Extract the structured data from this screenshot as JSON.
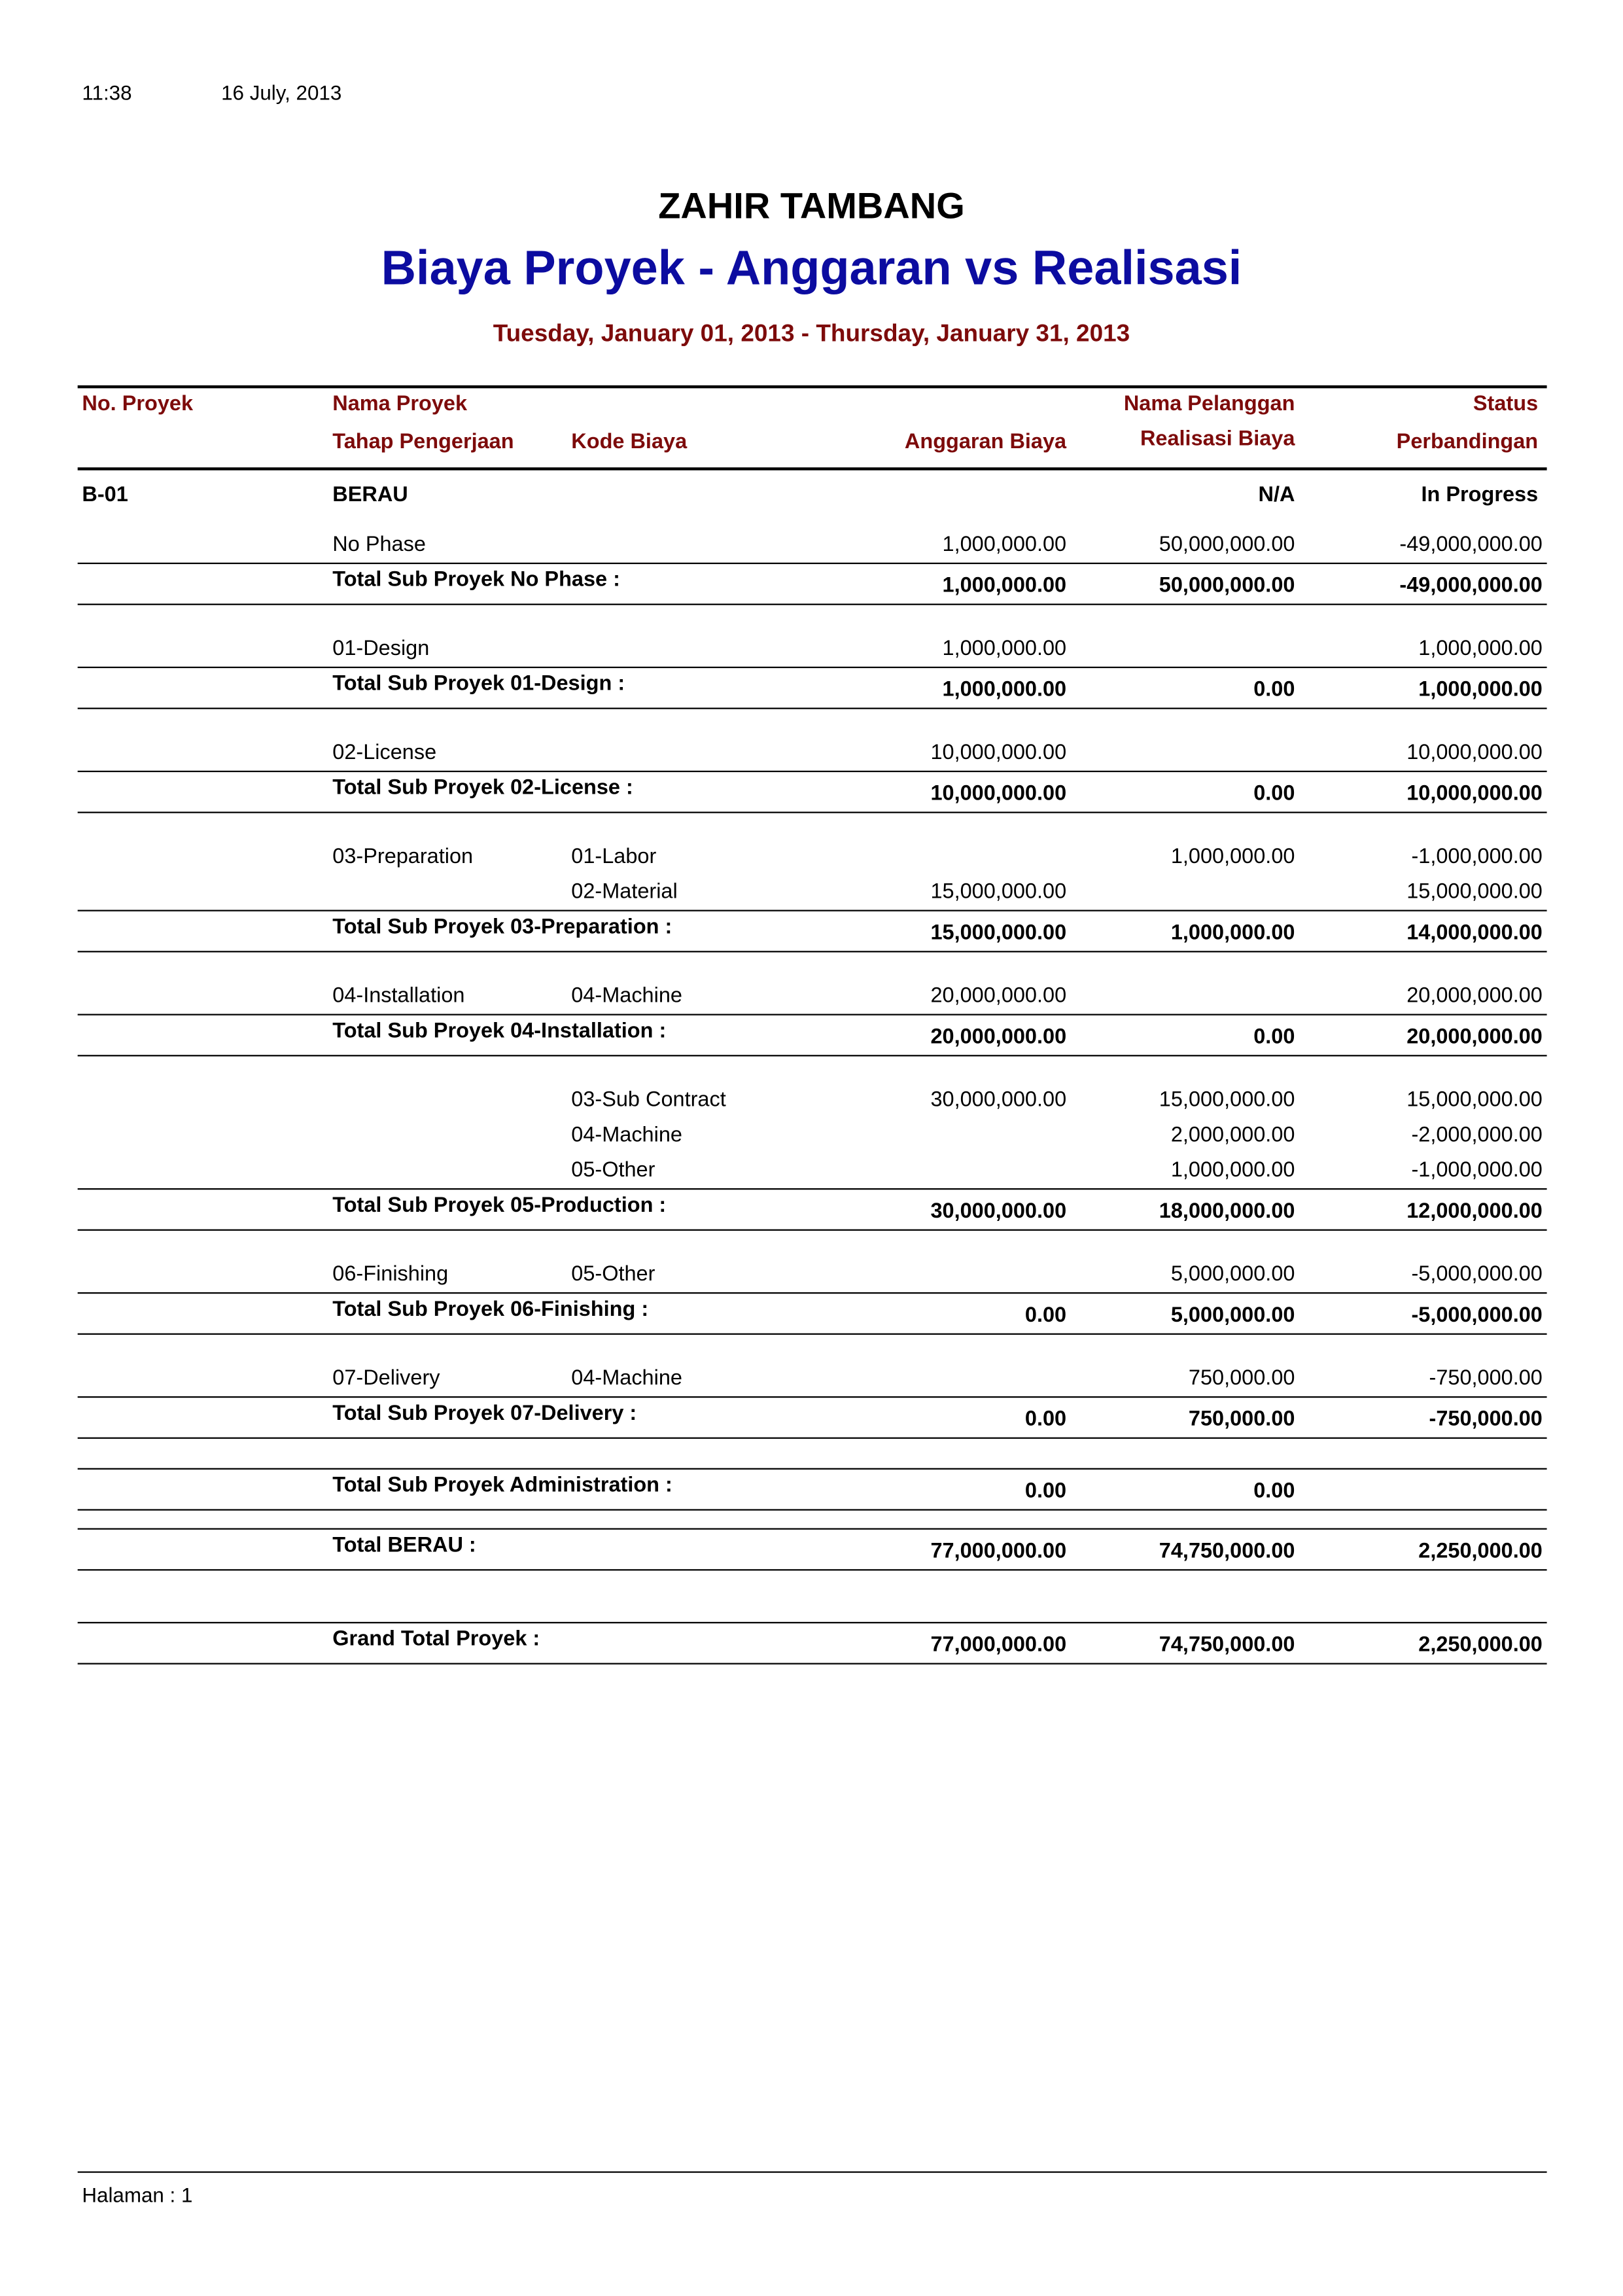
{
  "print_time": "11:38",
  "print_date": "16 July, 2013",
  "company": "ZAHIR TAMBANG",
  "title": "Biaya Proyek - Anggaran vs Realisasi",
  "period": "Tuesday, January 01, 2013 - Thursday, January 31, 2013",
  "colors": {
    "title": "#0c0ca0",
    "header": "#7d0b0b"
  },
  "headers": {
    "no_proyek": "No. Proyek",
    "nama_proyek": "Nama Proyek",
    "nama_pelanggan": "Nama Pelanggan",
    "status": "Status",
    "tahap": "Tahap Pengerjaan",
    "kode": "Kode Biaya",
    "anggaran": "Anggaran Biaya",
    "realisasi": "Realisasi Biaya",
    "perbandingan": "Perbandingan"
  },
  "project": {
    "no": "B-01",
    "nama": "BERAU",
    "pelanggan": "N/A",
    "status": "In Progress"
  },
  "groups": [
    {
      "details": [
        {
          "tahap": "No Phase",
          "kode": "",
          "anggaran": "1,000,000.00",
          "realisasi": "50,000,000.00",
          "perbandingan": "-49,000,000.00"
        }
      ],
      "total": {
        "label": "Total Sub Proyek No Phase :",
        "anggaran": "1,000,000.00",
        "realisasi": "50,000,000.00",
        "perbandingan": "-49,000,000.00"
      }
    },
    {
      "details": [
        {
          "tahap": "01-Design",
          "kode": "",
          "anggaran": "1,000,000.00",
          "realisasi": "",
          "perbandingan": "1,000,000.00"
        }
      ],
      "total": {
        "label": "Total Sub Proyek 01-Design :",
        "anggaran": "1,000,000.00",
        "realisasi": "0.00",
        "perbandingan": "1,000,000.00"
      }
    },
    {
      "details": [
        {
          "tahap": "02-License",
          "kode": "",
          "anggaran": "10,000,000.00",
          "realisasi": "",
          "perbandingan": "10,000,000.00"
        }
      ],
      "total": {
        "label": "Total Sub Proyek 02-License :",
        "anggaran": "10,000,000.00",
        "realisasi": "0.00",
        "perbandingan": "10,000,000.00"
      }
    },
    {
      "details": [
        {
          "tahap": "03-Preparation",
          "kode": "01-Labor",
          "anggaran": "",
          "realisasi": "1,000,000.00",
          "perbandingan": "-1,000,000.00"
        },
        {
          "tahap": "",
          "kode": "02-Material",
          "anggaran": "15,000,000.00",
          "realisasi": "",
          "perbandingan": "15,000,000.00"
        }
      ],
      "total": {
        "label": "Total Sub Proyek 03-Preparation :",
        "anggaran": "15,000,000.00",
        "realisasi": "1,000,000.00",
        "perbandingan": "14,000,000.00"
      }
    },
    {
      "details": [
        {
          "tahap": "04-Installation",
          "kode": "04-Machine",
          "anggaran": "20,000,000.00",
          "realisasi": "",
          "perbandingan": "20,000,000.00"
        }
      ],
      "total": {
        "label": "Total Sub Proyek 04-Installation :",
        "anggaran": "20,000,000.00",
        "realisasi": "0.00",
        "perbandingan": "20,000,000.00"
      }
    },
    {
      "details": [
        {
          "tahap": "",
          "kode": "03-Sub Contract",
          "anggaran": "30,000,000.00",
          "realisasi": "15,000,000.00",
          "perbandingan": "15,000,000.00"
        },
        {
          "tahap": "",
          "kode": "04-Machine",
          "anggaran": "",
          "realisasi": "2,000,000.00",
          "perbandingan": "-2,000,000.00"
        },
        {
          "tahap": "",
          "kode": "05-Other",
          "anggaran": "",
          "realisasi": "1,000,000.00",
          "perbandingan": "-1,000,000.00"
        }
      ],
      "total": {
        "label": "Total Sub Proyek 05-Production :",
        "anggaran": "30,000,000.00",
        "realisasi": "18,000,000.00",
        "perbandingan": "12,000,000.00"
      }
    },
    {
      "details": [
        {
          "tahap": "06-Finishing",
          "kode": "05-Other",
          "anggaran": "",
          "realisasi": "5,000,000.00",
          "perbandingan": "-5,000,000.00"
        }
      ],
      "total": {
        "label": "Total Sub Proyek 06-Finishing :",
        "anggaran": "0.00",
        "realisasi": "5,000,000.00",
        "perbandingan": "-5,000,000.00"
      }
    },
    {
      "details": [
        {
          "tahap": "07-Delivery",
          "kode": "04-Machine",
          "anggaran": "",
          "realisasi": "750,000.00",
          "perbandingan": "-750,000.00"
        }
      ],
      "total": {
        "label": "Total Sub Proyek 07-Delivery :",
        "anggaran": "0.00",
        "realisasi": "750,000.00",
        "perbandingan": "-750,000.00"
      }
    },
    {
      "details": [],
      "total": {
        "label": "Total Sub Proyek Administration :",
        "anggaran": "0.00",
        "realisasi": "0.00",
        "perbandingan": ""
      }
    }
  ],
  "project_total": {
    "label": "Total BERAU :",
    "anggaran": "77,000,000.00",
    "realisasi": "74,750,000.00",
    "perbandingan": "2,250,000.00"
  },
  "grand_total": {
    "label": "Grand Total Proyek :",
    "anggaran": "77,000,000.00",
    "realisasi": "74,750,000.00",
    "perbandingan": "2,250,000.00"
  },
  "footer": {
    "page_label": "Halaman : 1"
  }
}
